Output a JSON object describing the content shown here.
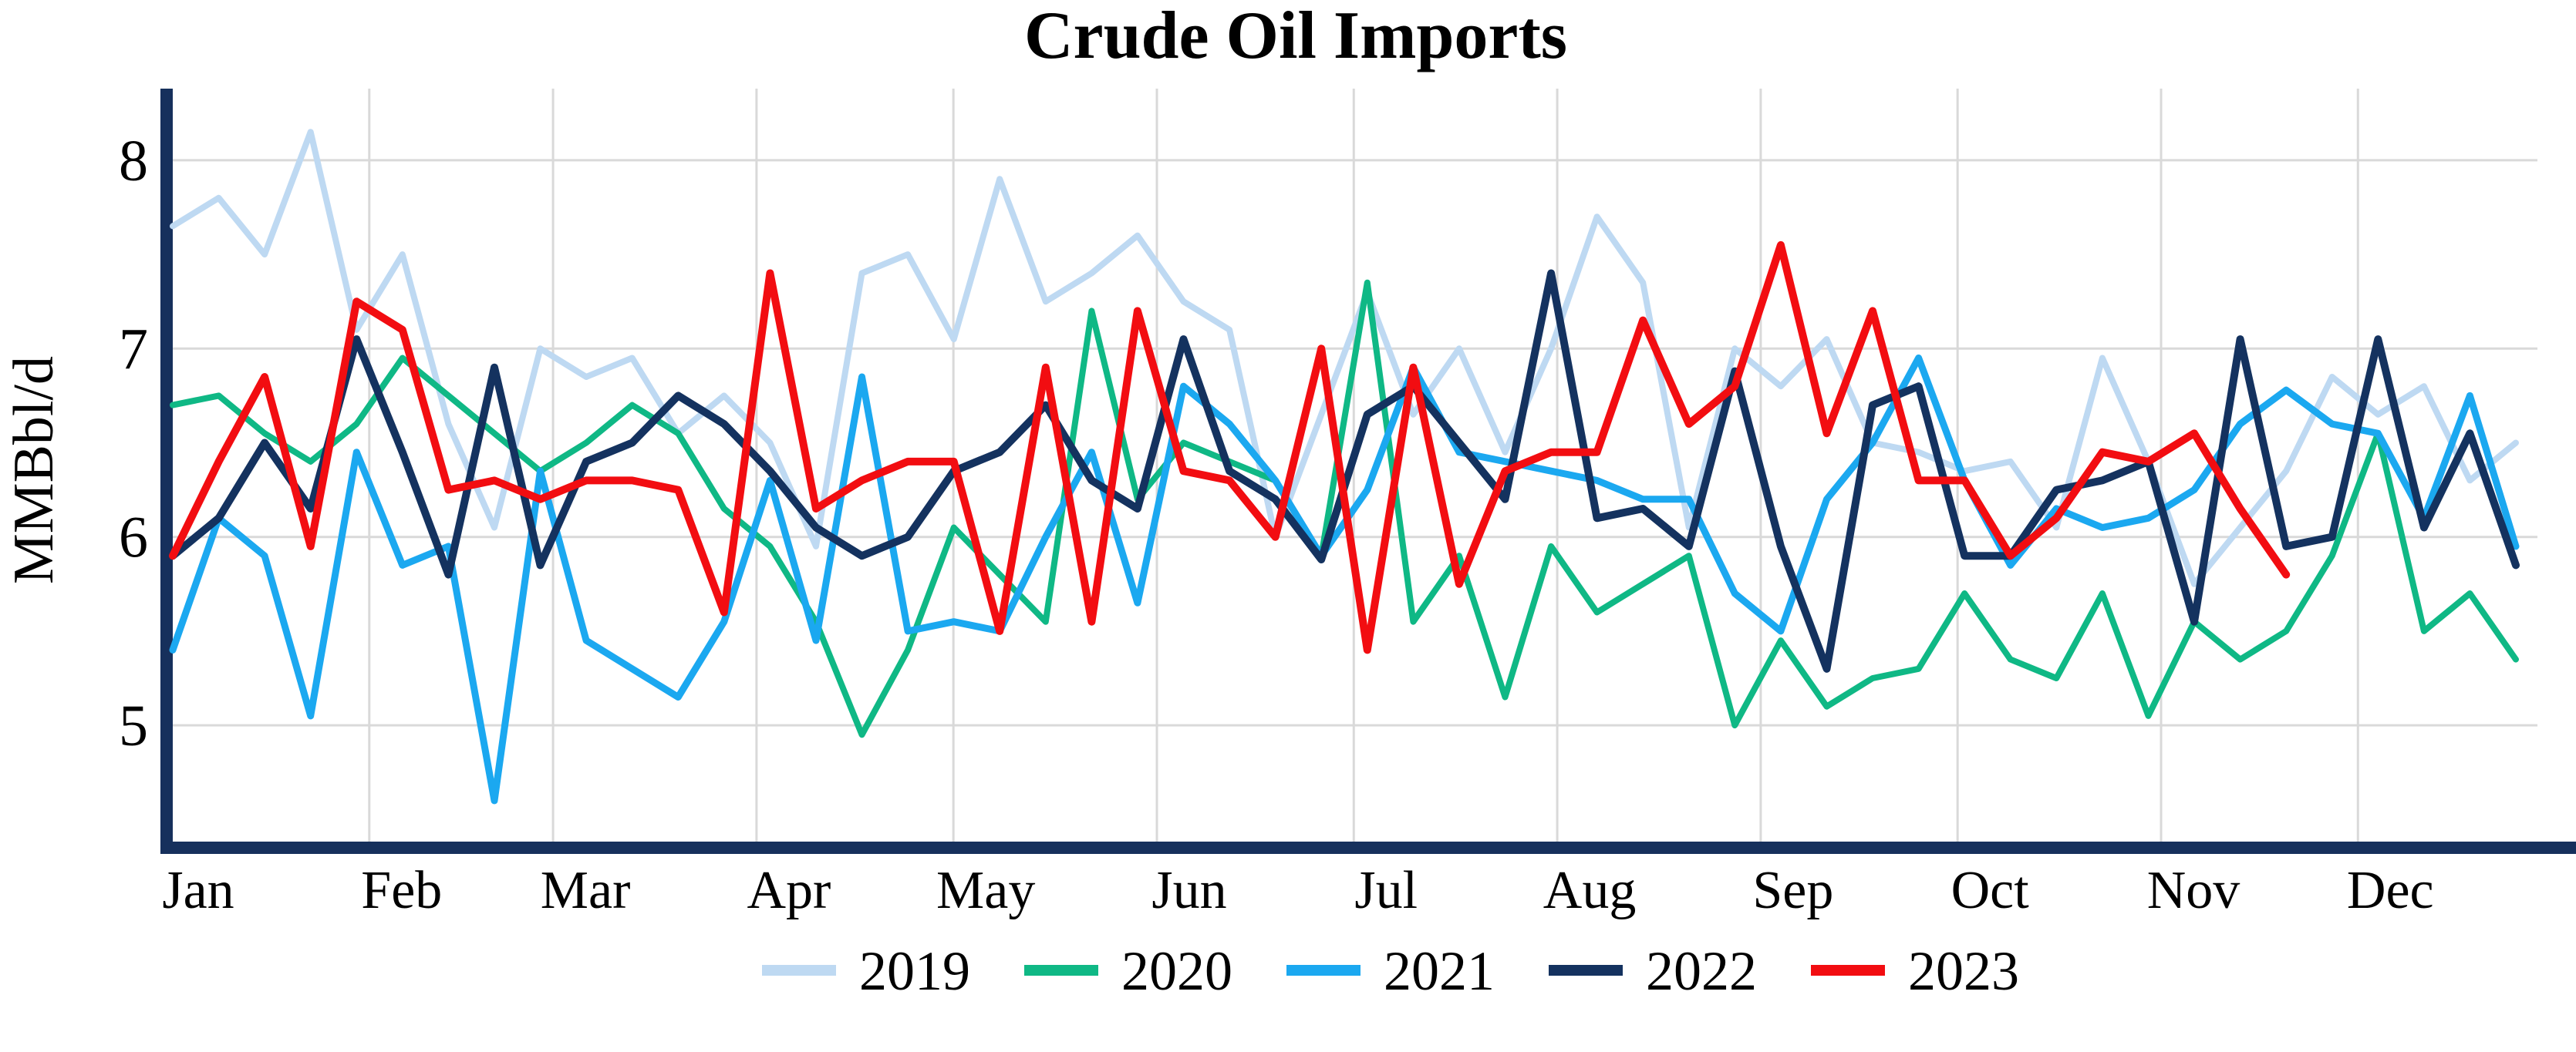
{
  "title": "Crude Oil Imports",
  "y_axis": {
    "label": "MMBbl/d",
    "ticks": [
      8,
      7,
      6,
      5
    ],
    "min": 4.35,
    "max": 8.38
  },
  "x_axis": {
    "months": [
      "Jan",
      "Feb",
      "Mar",
      "Apr",
      "May",
      "Jun",
      "Jul",
      "Aug",
      "Sep",
      "Oct",
      "Nov",
      "Dec"
    ]
  },
  "legend": {
    "entries": [
      "2019",
      "2020",
      "2021",
      "2022",
      "2023"
    ]
  },
  "colors": {
    "2019": "#bed9f2",
    "2020": "#0fb885",
    "2021": "#1ba8f0",
    "2022": "#14325f",
    "2023": "#f20d11",
    "axis": "#16305c",
    "grid": "#d9d9d9",
    "text": "#000000"
  },
  "chart_data": {
    "type": "line",
    "title": "Crude Oil Imports",
    "xlabel": "",
    "ylabel": "MMBbl/d",
    "x_unit": "week-of-year (weekly data, 52 points per full year)",
    "ylim": [
      4.35,
      8.38
    ],
    "yticks": [
      5,
      6,
      7,
      8
    ],
    "grid": true,
    "legend_position": "bottom-center",
    "month_labels": [
      "Jan",
      "Feb",
      "Mar",
      "Apr",
      "May",
      "Jun",
      "Jul",
      "Aug",
      "Sep",
      "Oct",
      "Nov",
      "Dec"
    ],
    "days_per_month": [
      31,
      28,
      31,
      30,
      31,
      30,
      31,
      31,
      30,
      31,
      30,
      31
    ],
    "series": [
      {
        "name": "2019",
        "color": "#bed9f2",
        "width": 8,
        "values": [
          7.65,
          7.8,
          7.5,
          8.15,
          7.1,
          7.5,
          6.6,
          6.05,
          7.0,
          6.85,
          6.95,
          6.55,
          6.75,
          6.5,
          5.95,
          7.4,
          7.5,
          7.05,
          7.9,
          7.25,
          7.4,
          7.6,
          7.25,
          7.1,
          6.0,
          6.65,
          7.3,
          6.65,
          7.0,
          6.45,
          7.0,
          7.7,
          7.35,
          6.05,
          7.0,
          6.8,
          7.05,
          6.5,
          6.45,
          6.35,
          6.4,
          6.05,
          6.95,
          6.4,
          5.75,
          6.05,
          6.35,
          6.85,
          6.65,
          6.8,
          6.3,
          6.5
        ]
      },
      {
        "name": "2020",
        "color": "#0fb885",
        "width": 8,
        "values": [
          6.7,
          6.75,
          6.55,
          6.4,
          6.6,
          6.95,
          6.75,
          6.55,
          6.35,
          6.5,
          6.7,
          6.55,
          6.15,
          5.95,
          5.55,
          4.95,
          5.4,
          6.05,
          5.8,
          5.55,
          7.2,
          6.2,
          6.5,
          6.4,
          6.3,
          5.9,
          7.35,
          5.55,
          5.9,
          5.15,
          5.95,
          5.6,
          5.75,
          5.9,
          5.0,
          5.45,
          5.1,
          5.25,
          5.3,
          5.7,
          5.35,
          5.25,
          5.7,
          5.05,
          5.55,
          5.35,
          5.5,
          5.9,
          6.55,
          5.5,
          5.7,
          5.35
        ]
      },
      {
        "name": "2021",
        "color": "#1ba8f0",
        "width": 9,
        "values": [
          5.4,
          6.1,
          5.9,
          5.05,
          6.45,
          5.85,
          5.95,
          4.6,
          6.35,
          5.45,
          5.3,
          5.15,
          5.55,
          6.3,
          5.45,
          6.85,
          5.5,
          5.55,
          5.5,
          6.0,
          6.45,
          5.65,
          6.8,
          6.6,
          6.3,
          5.9,
          6.25,
          6.9,
          6.45,
          6.4,
          6.35,
          6.3,
          6.2,
          6.2,
          5.7,
          5.5,
          6.2,
          6.5,
          6.95,
          6.3,
          5.85,
          6.15,
          6.05,
          6.1,
          6.25,
          6.6,
          6.78,
          6.6,
          6.55,
          6.1,
          6.75,
          5.95
        ]
      },
      {
        "name": "2022",
        "color": "#14325f",
        "width": 10,
        "values": [
          5.9,
          6.1,
          6.5,
          6.15,
          7.05,
          6.45,
          5.8,
          6.9,
          5.85,
          6.4,
          6.5,
          6.75,
          6.6,
          6.35,
          6.05,
          5.9,
          6.0,
          6.35,
          6.45,
          6.7,
          6.3,
          6.15,
          7.05,
          6.35,
          6.2,
          5.88,
          6.65,
          6.8,
          6.5,
          6.2,
          7.4,
          6.1,
          6.15,
          5.95,
          6.88,
          5.95,
          5.3,
          6.7,
          6.8,
          5.9,
          5.9,
          6.25,
          6.3,
          6.4,
          5.55,
          7.05,
          5.95,
          6.0,
          7.05,
          6.05,
          6.55,
          5.85
        ]
      },
      {
        "name": "2023",
        "color": "#f20d11",
        "width": 10,
        "values": [
          5.9,
          6.4,
          6.85,
          5.95,
          7.25,
          7.1,
          6.25,
          6.3,
          6.2,
          6.3,
          6.3,
          6.25,
          5.6,
          7.4,
          6.15,
          6.3,
          6.4,
          6.4,
          5.5,
          6.9,
          5.55,
          7.2,
          6.35,
          6.3,
          6.0,
          7.0,
          5.4,
          6.9,
          5.75,
          6.35,
          6.45,
          6.45,
          7.15,
          6.6,
          6.8,
          7.55,
          6.55,
          7.2,
          6.3,
          6.3,
          5.9,
          6.1,
          6.45,
          6.4,
          6.55,
          6.15,
          5.8
        ]
      }
    ]
  }
}
